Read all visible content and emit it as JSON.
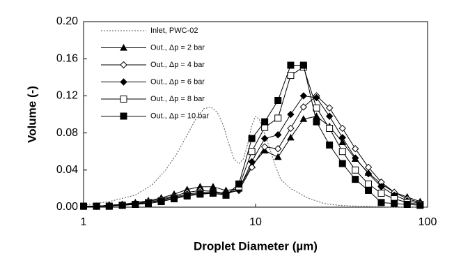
{
  "chart_data": {
    "type": "line",
    "x_label": "Droplet Diameter (µm)",
    "y_label": "Volume (-)",
    "xscale": "log",
    "xlim": [
      1,
      100
    ],
    "xticks": [
      1,
      10,
      100
    ],
    "ylim": [
      0,
      0.2
    ],
    "yticks": [
      {
        "value": 0,
        "label": "0.00"
      },
      {
        "value": 0.04,
        "label": "0.04"
      },
      {
        "value": 0.08,
        "label": "0.08"
      },
      {
        "value": 0.12,
        "label": "0.12"
      },
      {
        "value": 0.16,
        "label": "0.16"
      },
      {
        "value": 0.2,
        "label": "0.20"
      }
    ],
    "legend": "top-left",
    "series": [
      {
        "name": "Inlet, PWC-02",
        "color": "#555555",
        "marker": "none",
        "line_style": "dotted",
        "x": [
          1,
          1.41,
          2,
          2.5,
          3,
          3.5,
          4,
          4.5,
          5,
          5.5,
          6,
          6.5,
          7,
          7.5,
          8,
          8.5,
          9,
          9.5,
          10,
          10.5,
          11,
          12,
          13,
          14,
          16,
          18,
          20,
          25,
          30,
          40,
          60,
          100
        ],
        "values": [
          0.002,
          0.006,
          0.013,
          0.024,
          0.04,
          0.058,
          0.078,
          0.095,
          0.106,
          0.108,
          0.102,
          0.088,
          0.068,
          0.052,
          0.047,
          0.052,
          0.068,
          0.088,
          0.098,
          0.095,
          0.085,
          0.065,
          0.045,
          0.03,
          0.02,
          0.015,
          0.01,
          0.004,
          0.002,
          0.001,
          0,
          0
        ]
      },
      {
        "name": "Out., Δp = 2 bar",
        "color": "#000000",
        "marker": "triangle",
        "x": [
          1,
          1.19,
          1.41,
          1.68,
          2,
          2.38,
          2.83,
          3.36,
          4,
          4.76,
          5.66,
          6.73,
          8,
          9.51,
          11.3,
          13.5,
          16,
          19,
          22.6,
          26.9,
          32,
          38,
          45.3,
          53.8,
          64,
          76.1,
          90.5
        ],
        "values": [
          0.001,
          0.001,
          0.002,
          0.003,
          0.005,
          0.007,
          0.01,
          0.014,
          0.019,
          0.022,
          0.022,
          0.018,
          0.02,
          0.045,
          0.061,
          0.054,
          0.075,
          0.095,
          0.098,
          0.087,
          0.07,
          0.052,
          0.037,
          0.025,
          0.016,
          0.011,
          0.006
        ]
      },
      {
        "name": "Out., Δp = 4 bar",
        "color": "#000000",
        "marker": "diamond-open",
        "x": [
          1,
          1.19,
          1.41,
          1.68,
          2,
          2.38,
          2.83,
          3.36,
          4,
          4.76,
          5.66,
          6.73,
          8,
          9.51,
          11.3,
          13.5,
          16,
          19,
          22.6,
          26.9,
          32,
          38,
          45.3,
          53.8,
          64,
          76.1,
          90.5
        ],
        "values": [
          0.001,
          0.001,
          0.002,
          0.003,
          0.004,
          0.006,
          0.009,
          0.012,
          0.016,
          0.018,
          0.017,
          0.015,
          0.018,
          0.043,
          0.065,
          0.063,
          0.085,
          0.108,
          0.12,
          0.107,
          0.085,
          0.063,
          0.043,
          0.027,
          0.016,
          0.009,
          0.005
        ]
      },
      {
        "name": "Out., Δp = 6 bar",
        "color": "#000000",
        "marker": "diamond",
        "x": [
          1,
          1.19,
          1.41,
          1.68,
          2,
          2.38,
          2.83,
          3.36,
          4,
          4.76,
          5.66,
          6.73,
          8,
          9.51,
          11.3,
          13.5,
          16,
          19,
          22.6,
          26.9,
          32,
          38,
          45.3,
          53.8,
          64,
          76.1,
          90.5
        ],
        "values": [
          0.001,
          0.001,
          0.002,
          0.002,
          0.004,
          0.005,
          0.008,
          0.011,
          0.014,
          0.016,
          0.016,
          0.014,
          0.019,
          0.049,
          0.074,
          0.078,
          0.1,
          0.12,
          0.118,
          0.098,
          0.075,
          0.053,
          0.036,
          0.022,
          0.013,
          0.007,
          0.004
        ]
      },
      {
        "name": "Out., Δp = 8 bar",
        "color": "#000000",
        "marker": "square-open",
        "x": [
          1,
          1.19,
          1.41,
          1.68,
          2,
          2.38,
          2.83,
          3.36,
          4,
          4.76,
          5.66,
          6.73,
          8,
          9.51,
          11.3,
          13.5,
          16,
          19,
          22.6,
          26.9,
          32,
          38,
          45.3,
          53.8,
          64,
          76.1,
          90.5
        ],
        "values": [
          0.001,
          0.001,
          0.001,
          0.002,
          0.003,
          0.005,
          0.007,
          0.01,
          0.013,
          0.015,
          0.015,
          0.013,
          0.022,
          0.06,
          0.086,
          0.096,
          0.142,
          0.151,
          0.107,
          0.085,
          0.06,
          0.04,
          0.025,
          0.015,
          0.009,
          0.005,
          0.003
        ]
      },
      {
        "name": "Out., Δp = 10 bar",
        "color": "#000000",
        "marker": "square",
        "x": [
          1,
          1.19,
          1.41,
          1.68,
          2,
          2.38,
          2.83,
          3.36,
          4,
          4.76,
          5.66,
          6.73,
          8,
          9.51,
          11.3,
          13.5,
          16,
          19,
          22.6,
          26.9,
          32,
          38,
          45.3,
          53.8,
          64,
          76.1,
          90.5
        ],
        "values": [
          0.001,
          0.001,
          0.001,
          0.002,
          0.003,
          0.004,
          0.006,
          0.009,
          0.012,
          0.014,
          0.015,
          0.013,
          0.025,
          0.074,
          0.092,
          0.115,
          0.153,
          0.153,
          0.092,
          0.067,
          0.047,
          0.03,
          0.018,
          0.005,
          0.004,
          0.003,
          0.002
        ]
      }
    ]
  }
}
